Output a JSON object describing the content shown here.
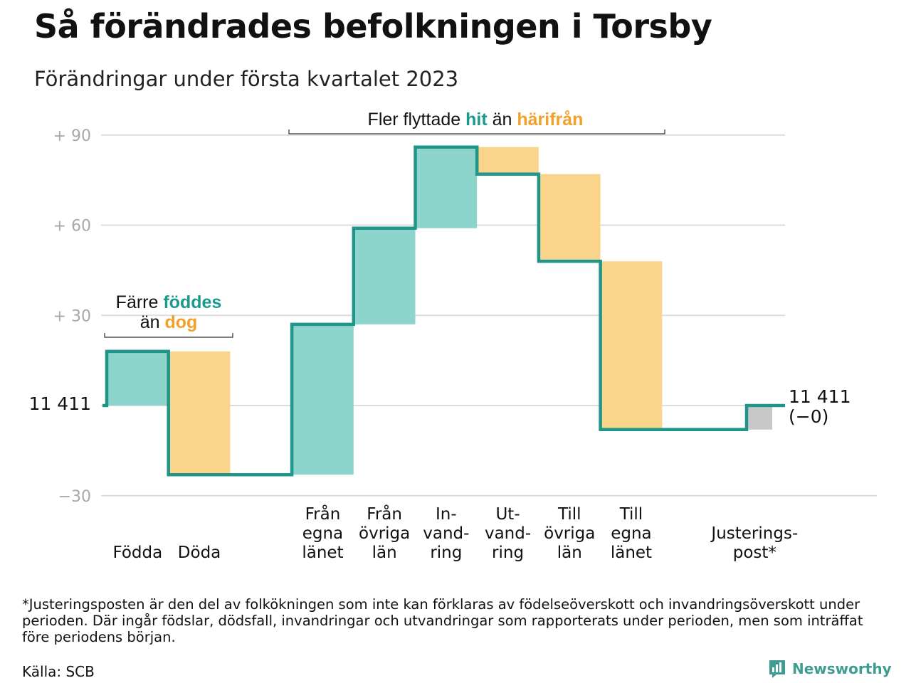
{
  "title": "Så förändrades befolkningen i Torsby",
  "subtitle": "Förändringar under första kvartalet 2023",
  "annotations": {
    "births_deaths_line1_prefix": "Färre ",
    "births_deaths_line1_highlight": "föddes",
    "births_deaths_line2_prefix": "än ",
    "births_deaths_line2_highlight": "dog",
    "migration_prefix": "Fler flyttade ",
    "migration_highlight1": "hit",
    "migration_middle": " än ",
    "migration_highlight2": "härifrån"
  },
  "start_label": "11 411",
  "end_label_line1": "11 411",
  "end_label_line2": "(−0)",
  "footnote": "*Justeringsposten är den del av folkökningen som inte kan förklaras av födelseöverskott och invandringsöverskott under perioden. Där ingår födslar, dödsfall, invandringar och utvandringar som rapporterats under perioden, men som inträffat före periodens början.",
  "source": "Källa: SCB",
  "brand": "Newsworthy",
  "colors": {
    "increase": "#8dd5cc",
    "decrease": "#fad48b",
    "adjustment": "#c8c8c8",
    "line": "#20958a",
    "teal_text": "#1a9a8c",
    "orange_text": "#f2a02b",
    "grid": "#dddddd"
  },
  "chart_data": {
    "type": "waterfall",
    "baseline_population": 11411,
    "yticks": [
      "+ 90",
      "+ 60",
      "+ 30",
      "−30"
    ],
    "ytick_values": [
      90,
      60,
      30,
      -30
    ],
    "ylim": [
      -30,
      90
    ],
    "grid": true,
    "categories": [
      {
        "label": [
          "Födda"
        ],
        "change": 18,
        "kind": "increase"
      },
      {
        "label": [
          "Döda"
        ],
        "change": -41,
        "kind": "decrease"
      },
      {
        "label": [],
        "change": 0,
        "kind": "gap"
      },
      {
        "label": [
          "Från",
          "egna",
          "länet"
        ],
        "change": 50,
        "kind": "increase"
      },
      {
        "label": [
          "Från",
          "övriga",
          "län"
        ],
        "change": 32,
        "kind": "increase"
      },
      {
        "label": [
          "In-",
          "vand-",
          "ring"
        ],
        "change": 27,
        "kind": "increase"
      },
      {
        "label": [
          "Ut-",
          "vand-",
          "ring"
        ],
        "change": -9,
        "kind": "decrease"
      },
      {
        "label": [
          "Till",
          "övriga",
          "län"
        ],
        "change": -29,
        "kind": "decrease"
      },
      {
        "label": [
          "Till",
          "egna",
          "länet"
        ],
        "change": -56,
        "kind": "decrease"
      },
      {
        "label": [],
        "change": 0,
        "kind": "gap"
      },
      {
        "label": [
          "Justerings-",
          "post*"
        ],
        "change": 8,
        "kind": "adjustment"
      }
    ],
    "end_change": 0
  }
}
